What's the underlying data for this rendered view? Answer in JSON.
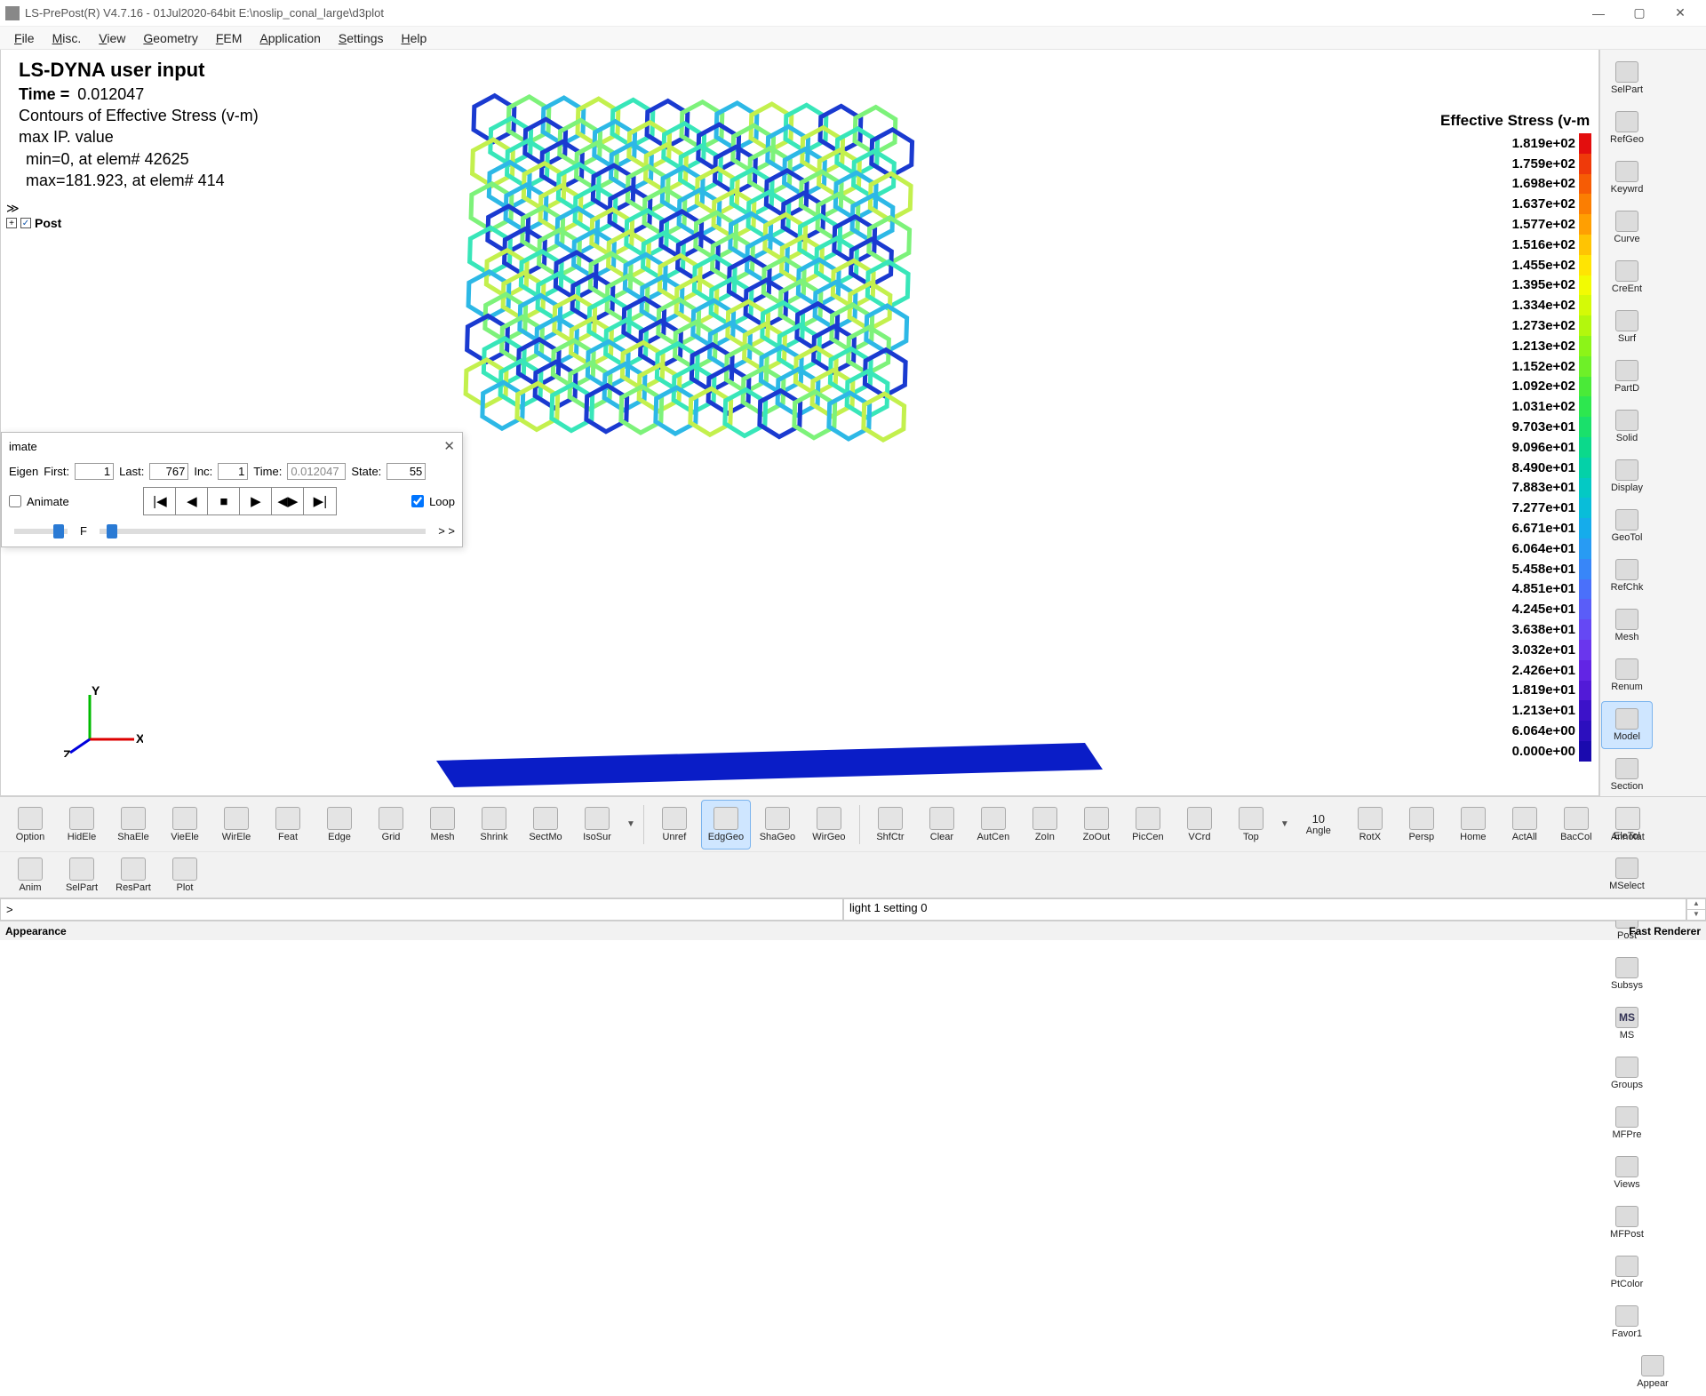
{
  "window": {
    "title": "LS-PrePost(R) V4.7.16 - 01Jul2020-64bit E:\\noslip_conal_large\\d3plot",
    "min": "—",
    "max": "▢",
    "close": "✕"
  },
  "menu": [
    "File",
    "Misc.",
    "View",
    "Geometry",
    "FEM",
    "Application",
    "Settings",
    "Help"
  ],
  "info": {
    "h1": "LS-DYNA user input",
    "time_label": "Time = ",
    "time_value": "0.012047",
    "l3": "Contours of Effective Stress (v-m)",
    "l4": "max IP. value",
    "l5": "min=0, at elem# 42625",
    "l6": "max=181.923, at elem# 414"
  },
  "tree": {
    "arrows": "≫",
    "node": "Post"
  },
  "legend": {
    "title": "Effective Stress (v-m",
    "values": [
      "1.819e+02",
      "1.759e+02",
      "1.698e+02",
      "1.637e+02",
      "1.577e+02",
      "1.516e+02",
      "1.455e+02",
      "1.395e+02",
      "1.334e+02",
      "1.273e+02",
      "1.213e+02",
      "1.152e+02",
      "1.092e+02",
      "1.031e+02",
      "9.703e+01",
      "9.096e+01",
      "8.490e+01",
      "7.883e+01",
      "7.277e+01",
      "6.671e+01",
      "6.064e+01",
      "5.458e+01",
      "4.851e+01",
      "4.245e+01",
      "3.638e+01",
      "3.032e+01",
      "2.426e+01",
      "1.819e+01",
      "1.213e+01",
      "6.064e+00",
      "0.000e+00"
    ],
    "colors": [
      "#e30e0e",
      "#ef3a0a",
      "#f65c05",
      "#fb7e02",
      "#ff9f02",
      "#ffc403",
      "#ffe403",
      "#f2fb03",
      "#d4fa07",
      "#b3f70d",
      "#8cf418",
      "#6ef028",
      "#4aea38",
      "#2de74f",
      "#1ae06b",
      "#0bd98b",
      "#04d1a8",
      "#04c9c4",
      "#09bdd9",
      "#15aceb",
      "#289bf3",
      "#3886f8",
      "#4a70fa",
      "#5a5df8",
      "#6548f4",
      "#6a36ed",
      "#6225e4",
      "#521ad7",
      "#3c12c9",
      "#2c0fbe",
      "#1a0aae"
    ]
  },
  "rrail_items": [
    [
      "SelPart",
      "RefGeo"
    ],
    [
      "Keywrd",
      "Curve"
    ],
    [
      "CreEnt",
      "Surf"
    ],
    [
      "PartD",
      "Solid"
    ],
    [
      "Display",
      "GeoTol"
    ],
    [
      "RefChk",
      "Mesh"
    ],
    [
      "Renum",
      "Model"
    ],
    [
      "Section",
      "EleTol"
    ],
    [
      "MSelect",
      "Post"
    ],
    [
      "Subsys",
      "MS"
    ],
    [
      "Groups",
      "MFPre"
    ],
    [
      "Views",
      "MFPost"
    ],
    [
      "PtColor",
      "Favor1"
    ]
  ],
  "rrail_selected": "Model",
  "rrail_appear": "Appear",
  "btool1": [
    "Option",
    "HidEle",
    "ShaEle",
    "VieEle",
    "WirEle",
    "Feat",
    "Edge",
    "Grid",
    "Mesh",
    "Shrink",
    "SectMo",
    "IsoSur"
  ],
  "btool1b": [
    "Unref",
    "EdgGeo",
    "ShaGeo",
    "WirGeo"
  ],
  "btool1_selected": "EdgGeo",
  "btool1c": [
    "ShfCtr",
    "Clear",
    "AutCen",
    "ZoIn",
    "ZoOut",
    "PicCen",
    "VCrd",
    "Top"
  ],
  "btool1d_label": "Angle",
  "btool1d_value": "10",
  "btool1e": [
    "RotX",
    "Persp",
    "Home",
    "ActAll",
    "BacCol",
    "Annotat"
  ],
  "btool2": [
    "Anim",
    "SelPart",
    "ResPart",
    "Plot"
  ],
  "cmd_prompt": ">",
  "cmd_right": "light 1 setting 0",
  "status_left": "Appearance",
  "status_right": "Fast Renderer",
  "anim": {
    "title": "imate",
    "close": "✕",
    "eigen": "Eigen",
    "first_lbl": "First:",
    "first": "1",
    "last_lbl": "Last:",
    "last": "767",
    "inc_lbl": "Inc:",
    "inc": "1",
    "time_lbl": "Time:",
    "time": "0.012047",
    "state_lbl": "State:",
    "state": "55",
    "animate_chk": "Animate",
    "loop_chk": "Loop",
    "s_lbl": "",
    "f_lbl": "F",
    "more": "> >"
  },
  "triad": {
    "x": "X",
    "y": "Y",
    "z": "Z"
  },
  "honeycomb": {
    "rows": 14,
    "cols": 12,
    "hex_colors": [
      "#1a3ad0",
      "#2db8e6",
      "#38e6b9",
      "#7df27a",
      "#c3f04d"
    ],
    "base_color": "#0a1dc7"
  }
}
